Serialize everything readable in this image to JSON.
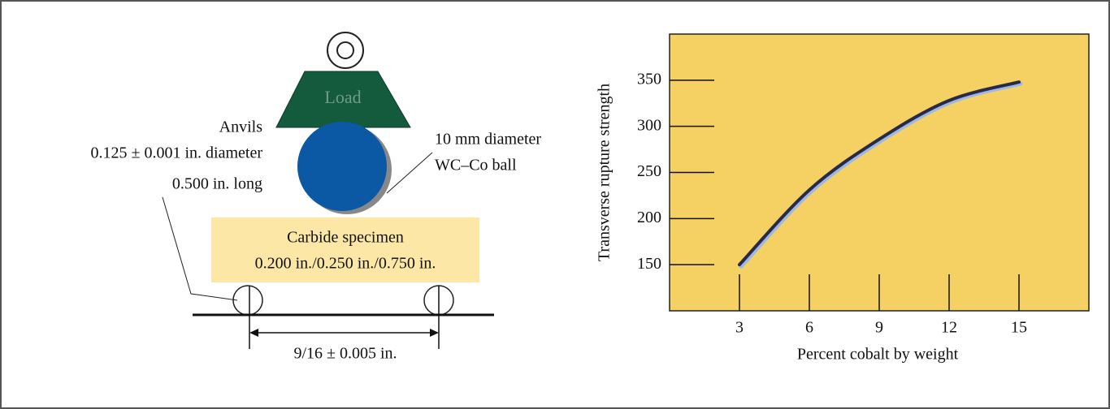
{
  "diagram": {
    "load_label": "Load",
    "anvils": "Anvils",
    "anvil_diameter": "0.125 ± 0.001 in. diameter",
    "anvil_length": "0.500 in. long",
    "ball_size": "10 mm diameter",
    "ball_material": "WC–Co ball",
    "specimen": "Carbide specimen",
    "specimen_dims": "0.200 in./0.250 in./0.750 in.",
    "span": "9/16 ± 0.005 in."
  },
  "chart_data": {
    "type": "line",
    "x_label": "Percent cobalt by weight",
    "y_label": "Transverse rupture strength",
    "x": [
      3,
      6,
      9,
      12,
      15
    ],
    "series": [
      {
        "color": "#2a2a48",
        "values": [
          150,
          231,
          286,
          328,
          348
        ]
      }
    ],
    "xlim": [
      0,
      18
    ],
    "ylim": [
      100,
      400
    ],
    "xticks": [
      3,
      6,
      9,
      12,
      15
    ],
    "yticks": [
      150,
      200,
      250,
      300,
      350
    ],
    "background": "#f5d164"
  }
}
